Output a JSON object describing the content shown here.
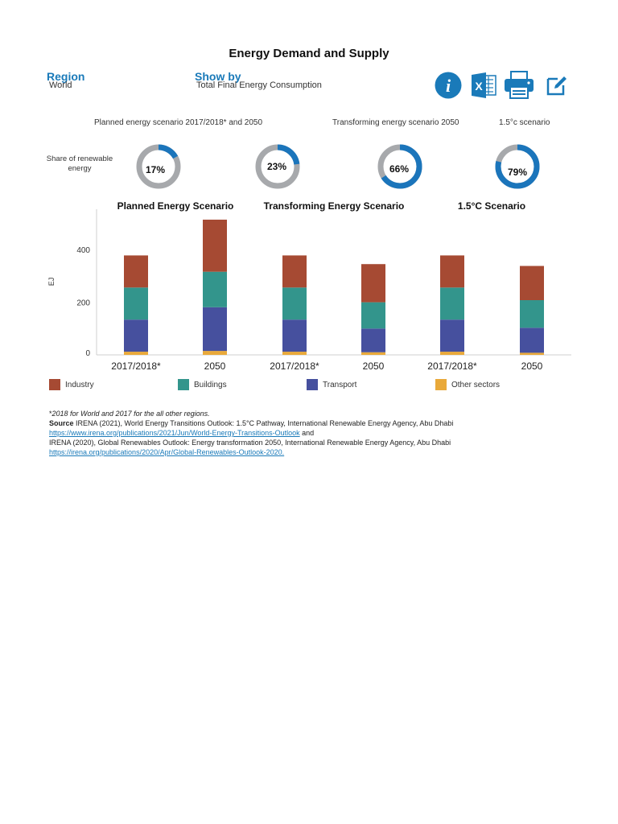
{
  "page": {
    "title": "Energy Demand and Supply"
  },
  "controls": {
    "region_label": "Region",
    "region_value": "World",
    "showby_label": "Show by",
    "showby_value": "Total Final Energy Consumption"
  },
  "toolbar": {
    "icons": [
      "info-icon",
      "excel-icon",
      "print-icon",
      "edit-icon"
    ],
    "colors": {
      "info": "#1a7ab9",
      "excel": "#1a7ab9",
      "print": "#1a7ab9",
      "edit": "#1a7ab9"
    }
  },
  "scenarios_header": {
    "planned": "Planned energy scenario 2017/2018* and 2050",
    "transforming": "Transforming energy scenario 2050",
    "one_five": "1.5°c scenario"
  },
  "renewable_share": {
    "label": "Share of renewable energy",
    "donuts": [
      {
        "pct_label": "17%",
        "value": 0.17
      },
      {
        "pct_label": "23%",
        "value": 0.23
      },
      {
        "pct_label": "66%",
        "value": 0.66
      },
      {
        "pct_label": "79%",
        "value": 0.79
      }
    ],
    "colors": {
      "filled": "#1b75bb",
      "empty": "#a7a9ac"
    }
  },
  "chart_data": {
    "type": "bar",
    "stacked": true,
    "group_titles": [
      "Planned Energy Scenario",
      "Transforming Energy Scenario",
      "1.5°C Scenario"
    ],
    "categories": [
      "2017/2018*",
      "2050",
      "2017/2018*",
      "2050",
      "2017/2018*",
      "2050"
    ],
    "ylabel": "EJ",
    "yticks": [
      0,
      200,
      400
    ],
    "ylim": [
      0,
      520
    ],
    "grid": false,
    "legend_position": "bottom",
    "series": [
      {
        "name": "Other sectors",
        "color": "#e9a93a",
        "values": [
          12,
          15,
          12,
          10,
          12,
          8
        ]
      },
      {
        "name": "Transport",
        "color": "#46509e",
        "values": [
          122,
          166,
          122,
          90,
          122,
          95
        ]
      },
      {
        "name": "Buildings",
        "color": "#33958c",
        "values": [
          122,
          135,
          122,
          100,
          122,
          105
        ]
      },
      {
        "name": "Industry",
        "color": "#a64a33",
        "values": [
          122,
          198,
          122,
          145,
          122,
          130
        ]
      }
    ],
    "legend_order": [
      "Industry",
      "Buildings",
      "Transport",
      "Other sectors"
    ]
  },
  "footnotes": {
    "note": "2018 for World and 2017 for the all other regions.",
    "note_star": "*",
    "source_label": "Source",
    "source1": "IRENA (2021), World Energy Transitions Outlook: 1.5°C Pathway, International Renewable Energy Agency, Abu Dhabi",
    "link1": "https://www.irena.org/publications/2021/Jun/World-Energy-Transitions-Outlook",
    "and": "and",
    "source2": "IRENA (2020), Global Renewables Outlook: Energy transformation 2050, International Renewable Energy Agency, Abu Dhabi",
    "link2": "https://irena.org/publications/2020/Apr/Global-Renewables-Outlook-2020."
  }
}
